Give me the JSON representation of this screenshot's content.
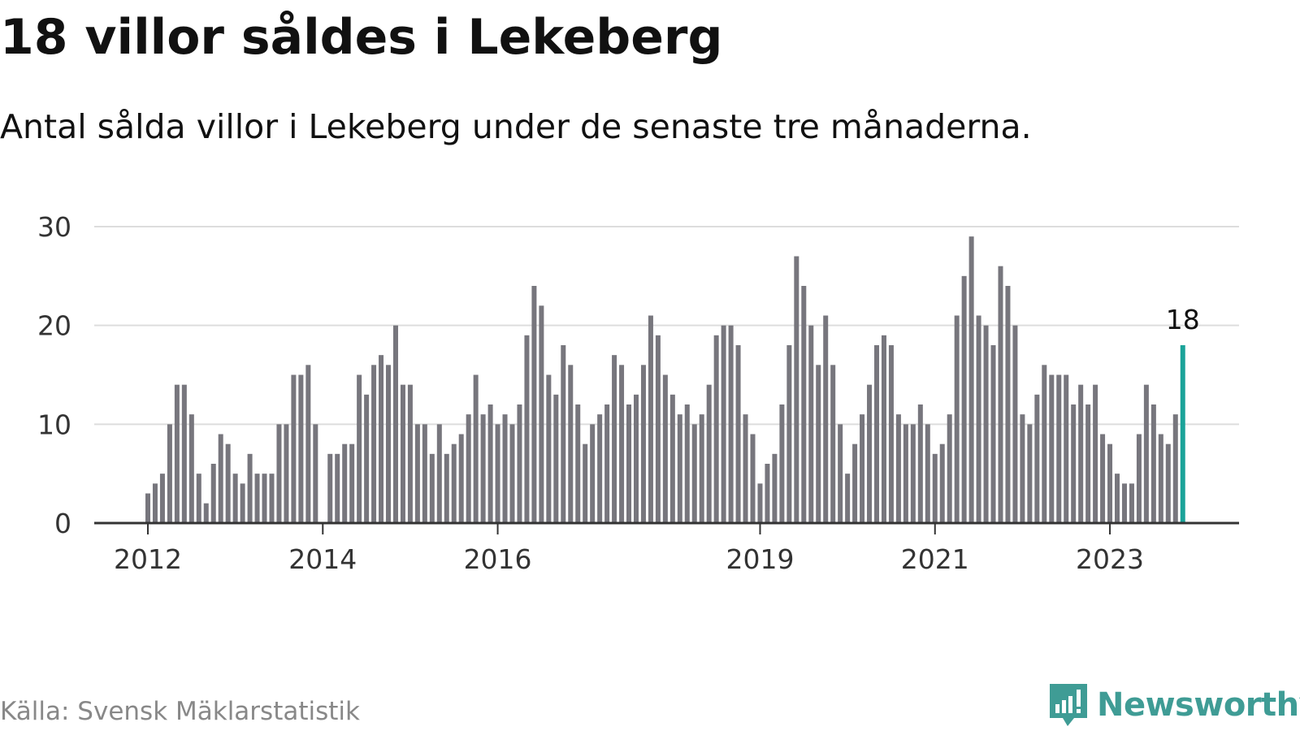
{
  "title": "18 villor såldes i Lekeberg",
  "subtitle": "Antal sålda villor i Lekeberg under de senaste tre månaderna.",
  "source": "Källa: Svensk Mäklarstatistik",
  "brand": "Newsworthy",
  "colors": {
    "bar": "#77767d",
    "highlight": "#1aa399",
    "grid": "#dddddd",
    "axis": "#333333",
    "brand": "#3f9c95"
  },
  "chart_data": {
    "type": "bar",
    "x_start": "2012-01",
    "x_end": "2023-09",
    "ylim": [
      0,
      30
    ],
    "yticks": [
      0,
      10,
      20,
      30
    ],
    "xticks": [
      {
        "label": "2012",
        "month": "2012-01"
      },
      {
        "label": "2014",
        "month": "2014-01"
      },
      {
        "label": "2016",
        "month": "2016-01"
      },
      {
        "label": "2019",
        "month": "2019-01"
      },
      {
        "label": "2021",
        "month": "2021-01"
      },
      {
        "label": "2023",
        "month": "2023-01"
      }
    ],
    "values": [
      3,
      4,
      5,
      10,
      14,
      14,
      11,
      5,
      2,
      6,
      9,
      8,
      5,
      4,
      7,
      5,
      5,
      5,
      10,
      10,
      15,
      15,
      16,
      10,
      0,
      7,
      7,
      8,
      8,
      15,
      13,
      16,
      17,
      16,
      20,
      14,
      14,
      10,
      10,
      7,
      10,
      7,
      8,
      9,
      11,
      15,
      11,
      12,
      10,
      11,
      10,
      12,
      19,
      24,
      22,
      15,
      13,
      18,
      16,
      12,
      8,
      10,
      11,
      12,
      17,
      16,
      12,
      13,
      16,
      21,
      19,
      15,
      13,
      11,
      12,
      10,
      11,
      14,
      19,
      20,
      20,
      18,
      11,
      9,
      4,
      6,
      7,
      12,
      18,
      27,
      24,
      20,
      16,
      21,
      16,
      10,
      5,
      8,
      11,
      14,
      18,
      19,
      18,
      11,
      10,
      10,
      12,
      10,
      7,
      8,
      11,
      21,
      25,
      29,
      21,
      20,
      18,
      26,
      24,
      20,
      11,
      10,
      13,
      16,
      15,
      15,
      15,
      12,
      14,
      12,
      14,
      9,
      8,
      5,
      4,
      4,
      9,
      14,
      12,
      9,
      8,
      11,
      18
    ],
    "highlight_label": "18",
    "grid": true
  }
}
